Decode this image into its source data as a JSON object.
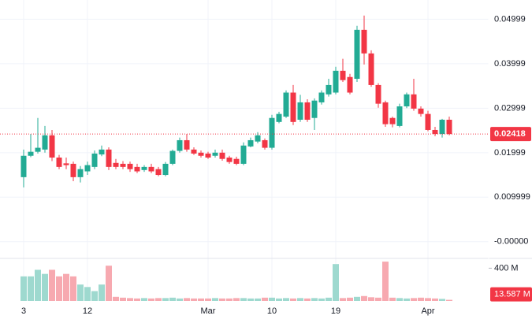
{
  "chart_data": {
    "type": "candlestick",
    "categories": [
      "3",
      null,
      null,
      null,
      null,
      null,
      null,
      null,
      null,
      "12",
      null,
      null,
      null,
      null,
      null,
      null,
      null,
      null,
      null,
      null,
      null,
      null,
      null,
      null,
      null,
      null,
      "Mar",
      null,
      null,
      null,
      null,
      null,
      null,
      null,
      null,
      "10",
      null,
      null,
      null,
      null,
      null,
      null,
      null,
      null,
      "19",
      null,
      null,
      null,
      null,
      null,
      null,
      null,
      null,
      null,
      null,
      null,
      null,
      "Apr",
      null,
      null,
      null
    ],
    "open": [
      0.0145,
      0.0193,
      0.0202,
      0.0207,
      0.0239,
      0.0189,
      0.0176,
      0.0175,
      0.0145,
      0.0158,
      0.0168,
      0.0196,
      0.0207,
      0.0177,
      0.0175,
      0.0175,
      0.0168,
      0.0161,
      0.0168,
      0.0163,
      0.015,
      0.0175,
      0.0204,
      0.0228,
      0.0207,
      0.02,
      0.0198,
      0.0193,
      0.02,
      0.0189,
      0.0186,
      0.0175,
      0.0214,
      0.0225,
      0.0228,
      0.0211,
      0.0269,
      0.0281,
      0.0335,
      0.0274,
      0.0313,
      0.0278,
      0.0313,
      0.0331,
      0.0335,
      0.0384,
      0.037,
      0.0366,
      0.0476,
      0.0423,
      0.0352,
      0.0313,
      0.0278,
      0.026,
      0.0304,
      0.0331,
      0.0299,
      0.0287,
      0.0251,
      0.0242,
      0.0274
    ],
    "high": [
      0.0207,
      0.0242,
      0.0278,
      0.026,
      0.0251,
      0.0195,
      0.0189,
      0.018,
      0.017,
      0.018,
      0.0205,
      0.0216,
      0.0212,
      0.0186,
      0.0181,
      0.018,
      0.0175,
      0.0172,
      0.0175,
      0.0168,
      0.0179,
      0.0207,
      0.0234,
      0.0242,
      0.0212,
      0.0205,
      0.0202,
      0.0207,
      0.0207,
      0.0193,
      0.0191,
      0.0223,
      0.0234,
      0.0246,
      0.0232,
      0.0285,
      0.0292,
      0.034,
      0.0352,
      0.033,
      0.032,
      0.0322,
      0.034,
      0.0366,
      0.0393,
      0.0411,
      0.0377,
      0.0485,
      0.0508,
      0.043,
      0.0356,
      0.0317,
      0.0281,
      0.031,
      0.0335,
      0.0366,
      0.0304,
      0.0294,
      0.0258,
      0.0276,
      0.0281
    ],
    "low": [
      0.0122,
      0.019,
      0.0198,
      0.02,
      0.0181,
      0.0163,
      0.0163,
      0.0136,
      0.0133,
      0.015,
      0.0163,
      0.0192,
      0.0161,
      0.0163,
      0.0163,
      0.0157,
      0.0154,
      0.0157,
      0.0154,
      0.0147,
      0.0147,
      0.0172,
      0.02,
      0.0202,
      0.0195,
      0.0189,
      0.0186,
      0.0189,
      0.0182,
      0.0175,
      0.0172,
      0.0172,
      0.0212,
      0.0221,
      0.0207,
      0.0207,
      0.0266,
      0.0278,
      0.0262,
      0.0269,
      0.0269,
      0.0251,
      0.0308,
      0.0326,
      0.0331,
      0.0359,
      0.0331,
      0.0359,
      0.0398,
      0.0348,
      0.0301,
      0.0258,
      0.0257,
      0.0257,
      0.03,
      0.0294,
      0.0281,
      0.0248,
      0.0237,
      0.0234,
      0.0239
    ],
    "close": [
      0.0193,
      0.0202,
      0.0211,
      0.0239,
      0.0189,
      0.0168,
      0.0172,
      0.0145,
      0.0163,
      0.0172,
      0.0198,
      0.0207,
      0.0168,
      0.0168,
      0.0168,
      0.0163,
      0.0158,
      0.0168,
      0.0158,
      0.015,
      0.0175,
      0.0204,
      0.0228,
      0.0207,
      0.0198,
      0.0193,
      0.0189,
      0.02,
      0.0186,
      0.0179,
      0.0175,
      0.0216,
      0.0228,
      0.0239,
      0.0211,
      0.0278,
      0.0287,
      0.0335,
      0.0269,
      0.0313,
      0.0274,
      0.0317,
      0.0335,
      0.0352,
      0.0384,
      0.0363,
      0.0335,
      0.0476,
      0.0423,
      0.0352,
      0.031,
      0.0264,
      0.0264,
      0.0304,
      0.0331,
      0.0299,
      0.0287,
      0.0251,
      0.0242,
      0.0274,
      0.02418
    ],
    "volume": [
      300,
      300,
      380,
      330,
      380,
      300,
      330,
      300,
      200,
      170,
      120,
      200,
      430,
      50,
      40,
      35,
      30,
      35,
      30,
      35,
      35,
      40,
      30,
      35,
      30,
      30,
      30,
      35,
      30,
      30,
      35,
      35,
      30,
      30,
      40,
      40,
      30,
      35,
      30,
      35,
      30,
      35,
      30,
      40,
      450,
      35,
      40,
      50,
      60,
      45,
      40,
      480,
      40,
      35,
      30,
      35,
      40,
      35,
      30,
      25,
      13.587
    ],
    "up_color": "#22ab94",
    "down_color": "#f23645",
    "volume_up_color": "#9ed9cf",
    "volume_down_color": "#f7a9b0",
    "ylim": [
      -0.0034,
      0.0543
    ],
    "yticks": [
      {
        "value": 0.04999,
        "label": "0.04999"
      },
      {
        "value": 0.03999,
        "label": "0.03999"
      },
      {
        "value": 0.02999,
        "label": "0.02999"
      },
      {
        "value": 0.01999,
        "label": "0.01999"
      },
      {
        "value": 0.009999,
        "label": "0.009999"
      },
      {
        "value": 0,
        "label": "-0.00000"
      }
    ],
    "volume_lim": [
      0,
      500
    ],
    "volume_ticks": [
      {
        "value": 400,
        "label": "400 M"
      }
    ],
    "last_price": {
      "value": 0.02418,
      "label": "0.02418"
    },
    "last_volume": {
      "value": 13.587,
      "label": "13.587 M"
    },
    "grid": true
  }
}
